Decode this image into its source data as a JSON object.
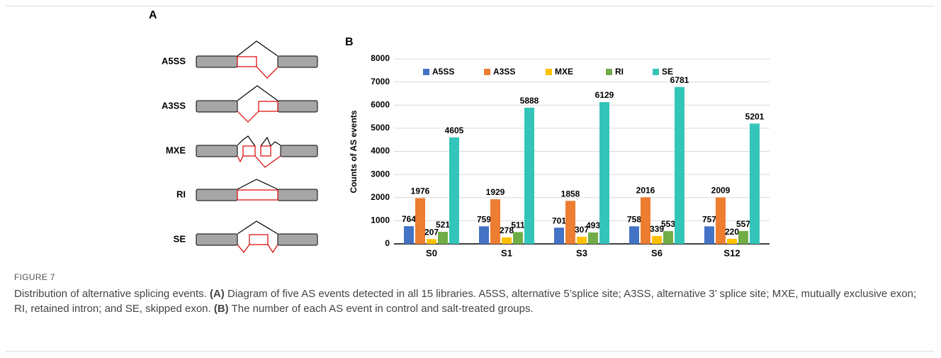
{
  "panel_a": {
    "label": "A",
    "events": [
      "A5SS",
      "A3SS",
      "MXE",
      "RI",
      "SE"
    ]
  },
  "panel_b": {
    "label": "B"
  },
  "chart_data": {
    "type": "bar",
    "y_label": "Counts of AS events",
    "categories": [
      "S0",
      "S1",
      "S3",
      "S6",
      "S12"
    ],
    "series": [
      {
        "name": "A5SS",
        "color": "#4472c4",
        "values": [
          764,
          759,
          701,
          758,
          757
        ]
      },
      {
        "name": "A3SS",
        "color": "#ed7d31",
        "values": [
          1976,
          1929,
          1858,
          2016,
          2009
        ]
      },
      {
        "name": "MXE",
        "color": "#ffc000",
        "values": [
          207,
          278,
          307,
          339,
          220
        ]
      },
      {
        "name": "RI",
        "color": "#70ad47",
        "values": [
          521,
          511,
          493,
          553,
          557
        ]
      },
      {
        "name": "SE",
        "color": "#33c5b9",
        "values": [
          4605,
          5888,
          6129,
          6781,
          5201
        ]
      }
    ],
    "ylim": [
      0,
      8000
    ],
    "yticks": [
      0,
      1000,
      2000,
      3000,
      4000,
      5000,
      6000,
      7000,
      8000
    ],
    "grid": true
  },
  "caption": {
    "label": "FIGURE 7",
    "runs": [
      "Distribution of alternative splicing events. ",
      "(A)",
      " Diagram of five AS events detected in all 15 libraries. A5SS, alternative 5’splice site; A3SS, alternative 3’ splice site; MXE, mutually exclusive exon; RI, retained intron; and SE, skipped exon. ",
      "(B)",
      " The number of each AS event in control and salt-treated groups."
    ]
  }
}
